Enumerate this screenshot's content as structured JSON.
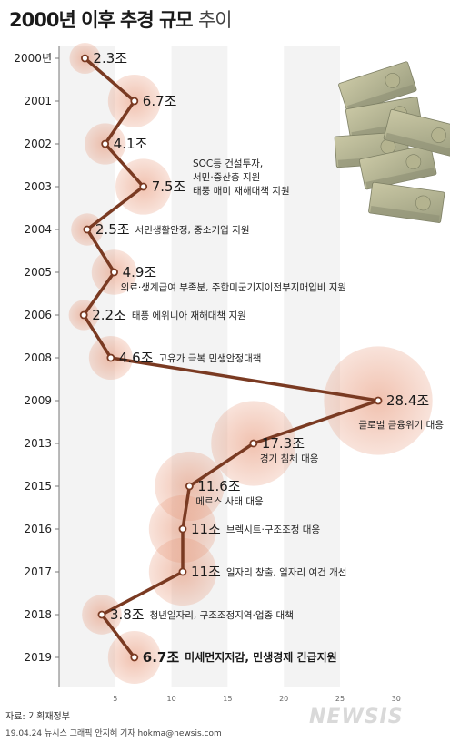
{
  "title": {
    "main": "2000년 이후 추경 규모",
    "sub": "추이"
  },
  "chart_data": {
    "type": "line",
    "title": "2000년 이후 추경 규모 추이",
    "xlabel": "",
    "ylabel": "",
    "xlim": [
      0,
      30
    ],
    "xticks": [
      "5",
      "10",
      "15",
      "20",
      "25",
      "30"
    ],
    "points": [
      {
        "year": "2000년",
        "value": 2.3,
        "label": "2.3조",
        "notes": []
      },
      {
        "year": "2001",
        "value": 6.7,
        "label": "6.7조",
        "notes": []
      },
      {
        "year": "2002",
        "value": 4.1,
        "label": "4.1조",
        "notes": []
      },
      {
        "year": "2003",
        "value": 7.5,
        "label": "7.5조",
        "notes": [
          "SOC등 건설투자,",
          "서민·중산층 지원",
          "태풍 매미 재해대책 지원"
        ]
      },
      {
        "year": "2004",
        "value": 2.5,
        "label": "2.5조",
        "notes": [
          "서민생활안정, 중소기업 지원"
        ]
      },
      {
        "year": "2005",
        "value": 4.9,
        "label": "4.9조",
        "notes": [
          "의료·생계급여 부족분, 주한미군기지이전부지매입비 지원"
        ]
      },
      {
        "year": "2006",
        "value": 2.2,
        "label": "2.2조",
        "notes": [
          "태풍 에위니아 재해대책 지원"
        ]
      },
      {
        "year": "2008",
        "value": 4.6,
        "label": "4.6조",
        "notes": [
          "고유가 극복 민생안정대책"
        ]
      },
      {
        "year": "2009",
        "value": 28.4,
        "label": "28.4조",
        "notes": [
          "글로벌 금융위기 대응"
        ]
      },
      {
        "year": "2013",
        "value": 17.3,
        "label": "17.3조",
        "notes": [
          "경기 침체 대응"
        ]
      },
      {
        "year": "2015",
        "value": 11.6,
        "label": "11.6조",
        "notes": [
          "메르스 사태 대응"
        ]
      },
      {
        "year": "2016",
        "value": 11,
        "label": "11조",
        "notes": [
          "브렉시트·구조조정 대응"
        ]
      },
      {
        "year": "2017",
        "value": 11,
        "label": "11조",
        "notes": [
          "일자리 창출, 일자리 여건 개선"
        ]
      },
      {
        "year": "2018",
        "value": 3.8,
        "label": "3.8조",
        "notes": [
          "청년일자리, 구조조정지역·업종 대책"
        ]
      },
      {
        "year": "2019",
        "value": 6.7,
        "label": "6.7조",
        "notes": [
          "미세먼지저감, 민생경제 긴급지원"
        ]
      }
    ],
    "colors": {
      "line": "#7a3a22",
      "bubble": "#e58f6e",
      "grid": "#ececec"
    }
  },
  "source": "자료: 기획재정부",
  "credit": "19.04.24 뉴시스 그래픽 안지혜 기자 hokma@newsis.com",
  "watermark": "NEWSIS"
}
